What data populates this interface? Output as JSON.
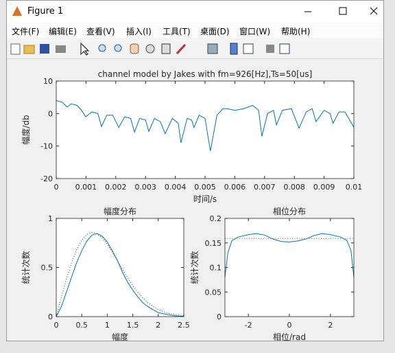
{
  "window": {
    "title": "Figure 1"
  },
  "menu": [
    "文件(F)",
    "编辑(E)",
    "查看(V)",
    "插入(I)",
    "工具(T)",
    "桌面(D)",
    "窗口(W)",
    "帮助(H)"
  ],
  "chart_data": [
    {
      "type": "line",
      "title": "channel model by Jakes with fm=926[Hz],Ts=50[us]",
      "x_label": "时间/s",
      "y_label": "幅度/db",
      "xlim": [
        0,
        0.01
      ],
      "ylim": [
        -20,
        10
      ],
      "xticks": [
        0,
        0.001,
        0.002,
        0.003,
        0.004,
        0.005,
        0.006,
        0.007,
        0.008,
        0.009,
        0.01
      ],
      "yticks": [
        -20,
        -10,
        0,
        10
      ],
      "series": [
        {
          "color": "#0072bd",
          "linestyle": "solid",
          "x": [
            0,
            0.0002,
            0.00037,
            0.0005,
            0.0007,
            0.00085,
            0.00099,
            0.0012,
            0.0014,
            0.00152,
            0.0017,
            0.0019,
            0.0021,
            0.0023,
            0.0025,
            0.00263,
            0.0028,
            0.003,
            0.00311,
            0.0033,
            0.0035,
            0.00366,
            0.0039,
            0.0041,
            0.00419,
            0.0044,
            0.00455,
            0.00463,
            0.0048,
            0.005,
            0.00518,
            0.0054,
            0.0056,
            0.00574,
            0.006,
            0.0063,
            0.0066,
            0.0068,
            0.00691,
            0.0071,
            0.0073,
            0.0074,
            0.0076,
            0.0079,
            0.00816,
            0.0084,
            0.0086,
            0.00873,
            0.009,
            0.0092,
            0.0093,
            0.0095,
            0.0097,
            0.01
          ],
          "values": [
            4,
            3.5,
            2,
            3,
            2.5,
            1,
            -1,
            0.5,
            0,
            -4,
            -0.5,
            -0.5,
            -4.3,
            -1,
            -1.5,
            -5.7,
            -1.5,
            -2,
            -5.5,
            -1.5,
            -2.5,
            -6.2,
            -1.5,
            -3,
            -9,
            -1.5,
            -2,
            -4.3,
            -0.5,
            -1.5,
            -11.5,
            -0.5,
            1.5,
            1.5,
            1,
            1.5,
            2.5,
            1,
            -7,
            0,
            1,
            -3.5,
            1,
            1.5,
            -4.5,
            0.5,
            1.5,
            -2.5,
            1,
            0,
            -3,
            0.5,
            0.5,
            -4.2
          ]
        }
      ]
    },
    {
      "type": "line",
      "title": "幅度分布",
      "x_label": "幅度",
      "y_label": "统计次数",
      "xlim": [
        0,
        2.5
      ],
      "ylim": [
        0,
        1
      ],
      "xticks": [
        0,
        0.5,
        1,
        1.5,
        2,
        2.5
      ],
      "yticks": [
        0,
        0.5,
        1
      ],
      "series": [
        {
          "color": "#0072bd",
          "linestyle": "solid",
          "x": [
            0,
            0.1,
            0.2,
            0.3,
            0.4,
            0.5,
            0.6,
            0.7,
            0.8,
            0.9,
            1,
            1.1,
            1.2,
            1.3,
            1.4,
            1.5,
            1.6,
            1.7,
            1.8,
            1.9,
            2,
            2.1,
            2.2,
            2.3,
            2.4,
            2.5
          ],
          "values": [
            0,
            0.1,
            0.25,
            0.4,
            0.55,
            0.67,
            0.77,
            0.83,
            0.845,
            0.82,
            0.76,
            0.67,
            0.57,
            0.45,
            0.35,
            0.27,
            0.2,
            0.14,
            0.1,
            0.07,
            0.04,
            0.03,
            0.02,
            0.01,
            0.005,
            0.002
          ]
        },
        {
          "color": "#333333",
          "linestyle": "dotted",
          "x": [
            0,
            0.1,
            0.2,
            0.3,
            0.4,
            0.5,
            0.6,
            0.7,
            0.8,
            0.9,
            1,
            1.1,
            1.2,
            1.3,
            1.4,
            1.5,
            1.6,
            1.7,
            1.8,
            1.9,
            2,
            2.1,
            2.2,
            2.3,
            2.4,
            2.5
          ],
          "values": [
            0,
            0.198,
            0.384,
            0.548,
            0.682,
            0.779,
            0.837,
            0.858,
            0.843,
            0.802,
            0.736,
            0.656,
            0.568,
            0.48,
            0.395,
            0.316,
            0.247,
            0.189,
            0.141,
            0.103,
            0.073,
            0.051,
            0.035,
            0.024,
            0.015,
            0.01
          ]
        }
      ]
    },
    {
      "type": "line",
      "title": "相位分布",
      "x_label": "相位/rad",
      "y_label": "统计次数",
      "xlim": [
        -3.1416,
        3.1416
      ],
      "ylim": [
        0,
        0.2
      ],
      "xticks": [
        -2,
        0,
        2
      ],
      "yticks": [
        0,
        0.05,
        0.1,
        0.15,
        0.2
      ],
      "series": [
        {
          "color": "#0072bd",
          "linestyle": "solid",
          "x": [
            -3.1416,
            -3,
            -2.8,
            -2.5,
            -2,
            -1.6,
            -1.2,
            -0.8,
            -0.4,
            0,
            0.4,
            0.8,
            1.2,
            1.6,
            2,
            2.5,
            2.8,
            3,
            3.1416
          ],
          "values": [
            0.08,
            0.13,
            0.155,
            0.162,
            0.167,
            0.169,
            0.166,
            0.158,
            0.153,
            0.152,
            0.154,
            0.158,
            0.165,
            0.169,
            0.167,
            0.162,
            0.155,
            0.135,
            0.08
          ]
        },
        {
          "color": "#d62728",
          "linestyle": "dotted",
          "x": [
            -3.1416,
            3.1416
          ],
          "values": [
            0.159,
            0.159
          ]
        }
      ]
    }
  ]
}
